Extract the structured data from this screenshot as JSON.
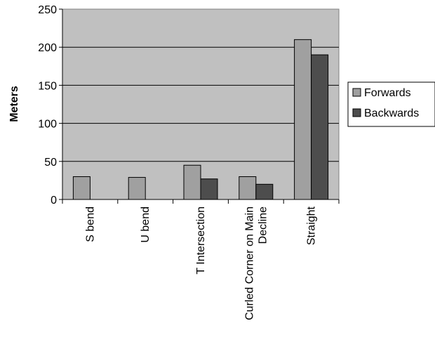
{
  "chart_data": {
    "type": "bar",
    "title": "",
    "xlabel": "",
    "ylabel": "Meters",
    "ylim": [
      0,
      250
    ],
    "yticks": [
      0,
      50,
      100,
      150,
      200,
      250
    ],
    "grid": true,
    "legend_position": "right",
    "categories": [
      "S bend",
      "U bend",
      "T Intersection",
      "Curled Corner on Main Decline",
      "Straight"
    ],
    "category_lines": [
      [
        "S bend"
      ],
      [
        "U bend"
      ],
      [
        "T Intersection"
      ],
      [
        "Curled Corner on Main",
        "Decline"
      ],
      [
        "Straight"
      ]
    ],
    "series": [
      {
        "name": "Forwards",
        "values": [
          30,
          29,
          45,
          30,
          210
        ],
        "color": "#a0a0a0"
      },
      {
        "name": "Backwards",
        "values": [
          null,
          null,
          27,
          20,
          190
        ],
        "color": "#4d4d4d"
      }
    ],
    "plot_background": "#c0c0c0"
  }
}
